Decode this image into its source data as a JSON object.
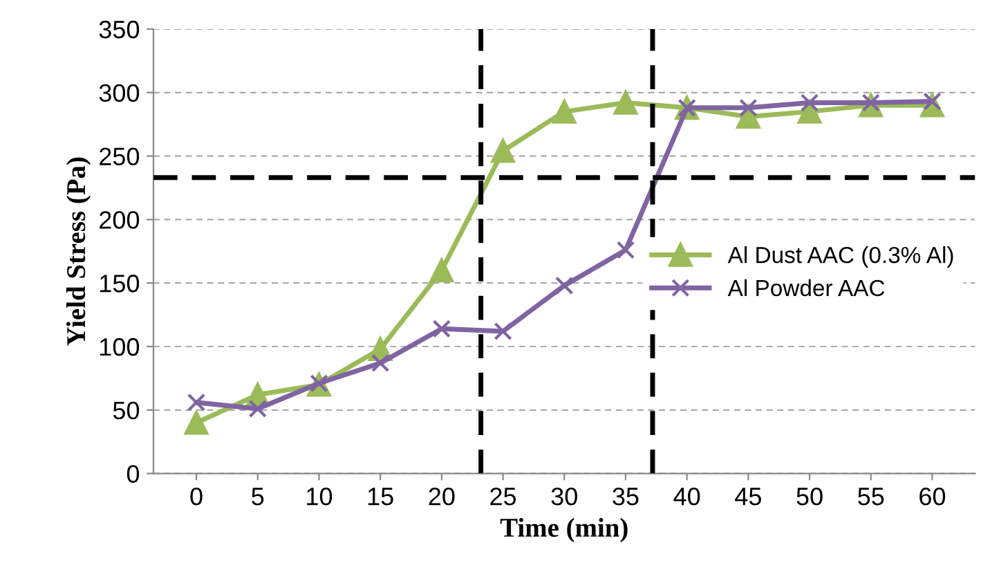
{
  "chart_data": {
    "type": "line",
    "xlabel": "Time (min)",
    "ylabel": "Yield Stress (Pa)",
    "x": [
      0,
      5,
      10,
      15,
      20,
      25,
      30,
      35,
      40,
      45,
      50,
      55,
      60
    ],
    "series": [
      {
        "name": "Al Dust AAC (0.3% Al)",
        "color": "#9bbb59",
        "marker": "triangle",
        "values": [
          40,
          62,
          70,
          98,
          160,
          254,
          285,
          292,
          288,
          281,
          285,
          290,
          290
        ]
      },
      {
        "name": "Al Powder AAC",
        "color": "#8064a2",
        "marker": "cross",
        "values": [
          56,
          51,
          71,
          87,
          114,
          112,
          148,
          176,
          288,
          288,
          292,
          292,
          293
        ]
      }
    ],
    "xlim": [
      -3.5,
      63.5
    ],
    "xticks": [
      0,
      5,
      10,
      15,
      20,
      25,
      30,
      35,
      40,
      45,
      50,
      55,
      60
    ],
    "ylim": [
      0,
      350
    ],
    "yticks": [
      0,
      50,
      100,
      150,
      200,
      250,
      300,
      350
    ],
    "grid": "y",
    "legend": "right",
    "ref_lines": [
      {
        "axis": "y",
        "value": 233,
        "color": "#000000",
        "line_style": "dashed"
      },
      {
        "axis": "x",
        "value": 23.2,
        "color": "#000000",
        "line_style": "dashed"
      },
      {
        "axis": "x",
        "value": 37.2,
        "color": "#000000",
        "line_style": "dashed"
      }
    ]
  }
}
